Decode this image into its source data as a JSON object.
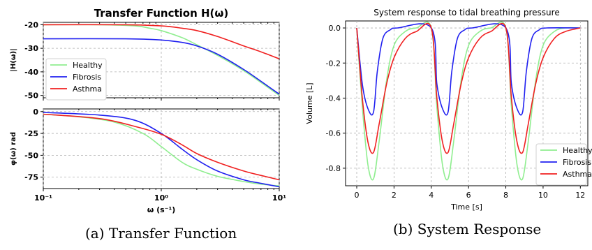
{
  "chart_data": [
    {
      "type": "line",
      "panel": "magnitude",
      "title": "Transfer Function H(ω)",
      "xlabel": "ω (s⁻¹)",
      "ylabel": "|H(ω)|",
      "xscale": "log",
      "xlim": [
        0.1,
        10
      ],
      "ylim": [
        -51,
        -19
      ],
      "yticks": [
        "-20",
        "-30",
        "-40",
        "-50"
      ],
      "grid": true,
      "legend": "center-left",
      "series": [
        {
          "name": "Healthy",
          "color": "#90ee90",
          "x": [
            0.1,
            0.3,
            0.6,
            0.8,
            1.0,
            1.5,
            2,
            3,
            5,
            7,
            10
          ],
          "y": [
            -20,
            -20,
            -20.5,
            -21.5,
            -22.5,
            -25.5,
            -28.5,
            -33,
            -39.5,
            -44.5,
            -50
          ]
        },
        {
          "name": "Fibrosis",
          "color": "#2020f0",
          "x": [
            0.1,
            0.5,
            1.0,
            1.5,
            2,
            3,
            5,
            7,
            10
          ],
          "y": [
            -26,
            -26,
            -26.5,
            -27.5,
            -29,
            -32.5,
            -39,
            -44,
            -49.5
          ]
        },
        {
          "name": "Asthma",
          "color": "#f02020",
          "x": [
            0.1,
            0.5,
            1.0,
            1.5,
            2,
            3,
            5,
            7,
            10
          ],
          "y": [
            -20,
            -20,
            -20.5,
            -21.5,
            -22.5,
            -25,
            -29,
            -31.5,
            -34.5
          ]
        }
      ]
    },
    {
      "type": "line",
      "panel": "phase",
      "xlabel": "ω (s⁻¹)",
      "ylabel": "φ(ω) rad",
      "xscale": "log",
      "xlim": [
        0.1,
        10
      ],
      "ylim": [
        -88,
        3
      ],
      "xticks": [
        "10⁻¹",
        "10⁰",
        "10¹"
      ],
      "yticks": [
        "0",
        "-25",
        "-50",
        "-75"
      ],
      "grid": true,
      "series": [
        {
          "name": "Healthy",
          "color": "#90ee90",
          "x": [
            0.1,
            0.2,
            0.4,
            0.7,
            1.0,
            1.5,
            2,
            3,
            5,
            7,
            10
          ],
          "y": [
            -3,
            -6,
            -12,
            -25,
            -40,
            -58,
            -66,
            -74,
            -80,
            -83,
            -85
          ]
        },
        {
          "name": "Fibrosis",
          "color": "#2020f0",
          "x": [
            0.1,
            0.3,
            0.6,
            1.0,
            1.5,
            2,
            3,
            5,
            7,
            10
          ],
          "y": [
            -1,
            -4,
            -10,
            -25,
            -43,
            -55,
            -68,
            -78,
            -82,
            -86
          ]
        },
        {
          "name": "Asthma",
          "color": "#f02020",
          "x": [
            0.1,
            0.3,
            0.6,
            1.0,
            1.5,
            2,
            3,
            5,
            7,
            10
          ],
          "y": [
            -3,
            -8,
            -17,
            -26,
            -38,
            -48,
            -58,
            -68,
            -73,
            -78
          ]
        }
      ]
    },
    {
      "type": "line",
      "title": "System response to tidal breathing pressure",
      "xlabel": "Time [s]",
      "ylabel": "Volume [L]",
      "xlim": [
        -0.6,
        12.4
      ],
      "ylim": [
        -0.9,
        0.04
      ],
      "xticks": [
        "0",
        "2",
        "4",
        "6",
        "8",
        "10",
        "12"
      ],
      "yticks": [
        "0.0",
        "-0.2",
        "-0.4",
        "-0.6",
        "-0.8"
      ],
      "grid": true,
      "legend": "bottom-right",
      "series": [
        {
          "name": "Healthy",
          "color": "#90ee90",
          "x": [
            0,
            0.3,
            0.6,
            0.9,
            1.2,
            1.6,
            2.0,
            2.6,
            3.2,
            4.0,
            4.3,
            4.6,
            4.9,
            5.2,
            5.6,
            6.0,
            6.6,
            7.2,
            8.0,
            8.3,
            8.6,
            8.9,
            9.2,
            9.6,
            10.0,
            10.6,
            11.2,
            12.0
          ],
          "y": [
            0,
            -0.45,
            -0.78,
            -0.86,
            -0.65,
            -0.3,
            -0.1,
            -0.02,
            0,
            0,
            -0.45,
            -0.78,
            -0.86,
            -0.65,
            -0.3,
            -0.1,
            -0.02,
            0,
            0,
            -0.45,
            -0.78,
            -0.86,
            -0.65,
            -0.3,
            -0.1,
            -0.02,
            0,
            0
          ]
        },
        {
          "name": "Fibrosis",
          "color": "#2020f0",
          "x": [
            0,
            0.3,
            0.6,
            0.9,
            1.1,
            1.4,
            1.8,
            2.2,
            4.0,
            4.3,
            4.6,
            4.9,
            5.1,
            5.4,
            5.8,
            6.2,
            8.0,
            8.3,
            8.6,
            8.9,
            9.1,
            9.4,
            9.8,
            10.2,
            12.0
          ],
          "y": [
            0,
            -0.32,
            -0.46,
            -0.48,
            -0.25,
            -0.06,
            -0.01,
            0,
            0,
            -0.32,
            -0.46,
            -0.48,
            -0.25,
            -0.06,
            -0.01,
            0,
            0,
            -0.32,
            -0.46,
            -0.48,
            -0.25,
            -0.06,
            -0.01,
            0,
            0
          ]
        },
        {
          "name": "Asthma",
          "color": "#f02020",
          "x": [
            0,
            0.3,
            0.6,
            0.9,
            1.2,
            1.6,
            2.0,
            2.6,
            3.2,
            4.0,
            4.3,
            4.6,
            4.9,
            5.2,
            5.6,
            6.0,
            6.6,
            7.2,
            8.0,
            8.3,
            8.6,
            8.9,
            9.2,
            9.6,
            10.0,
            10.6,
            11.2,
            12.0
          ],
          "y": [
            0,
            -0.4,
            -0.65,
            -0.71,
            -0.55,
            -0.32,
            -0.17,
            -0.06,
            -0.02,
            0,
            -0.4,
            -0.65,
            -0.71,
            -0.55,
            -0.32,
            -0.17,
            -0.06,
            -0.02,
            0,
            -0.4,
            -0.65,
            -0.71,
            -0.55,
            -0.32,
            -0.17,
            -0.06,
            -0.02,
            0
          ]
        }
      ]
    }
  ],
  "captions": {
    "a": "(a) Transfer Function",
    "b": "(b) System Response"
  }
}
